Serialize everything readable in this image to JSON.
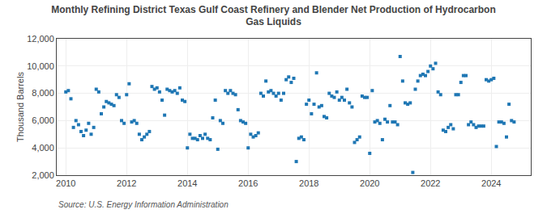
{
  "chart_data": {
    "type": "scatter",
    "title": "Monthly Refining District Texas Gulf Coast Refinery and Blender Net Production of Hydrocarbon\nGas Liquids",
    "ylabel": "Thousand Barrels",
    "annotations": [
      "Source: U.S. Energy Information Administration"
    ],
    "marker": "square",
    "grid": true,
    "xlim": [
      2009.7,
      2025.3
    ],
    "xticks": [
      2010,
      2012,
      2014,
      2016,
      2018,
      2020,
      2022,
      2024
    ],
    "ylim": [
      2000,
      12000
    ],
    "yticks": [
      {
        "value": 2000,
        "label": "2,000"
      },
      {
        "value": 4000,
        "label": "4,000"
      },
      {
        "value": 6000,
        "label": "6,000"
      },
      {
        "value": 8000,
        "label": "8,000"
      },
      {
        "value": 10000,
        "label": "10,000"
      },
      {
        "value": 12000,
        "label": "12,000"
      }
    ],
    "x": [
      2010.0,
      2010.083,
      2010.167,
      2010.25,
      2010.333,
      2010.417,
      2010.5,
      2010.583,
      2010.667,
      2010.75,
      2010.833,
      2010.917,
      2011.0,
      2011.083,
      2011.167,
      2011.25,
      2011.333,
      2011.417,
      2011.5,
      2011.583,
      2011.667,
      2011.75,
      2011.833,
      2011.917,
      2012.0,
      2012.083,
      2012.167,
      2012.25,
      2012.333,
      2012.417,
      2012.5,
      2012.583,
      2012.667,
      2012.75,
      2012.833,
      2012.917,
      2013.0,
      2013.083,
      2013.167,
      2013.25,
      2013.333,
      2013.417,
      2013.5,
      2013.583,
      2013.667,
      2013.75,
      2013.833,
      2013.917,
      2014.0,
      2014.083,
      2014.167,
      2014.25,
      2014.333,
      2014.417,
      2014.5,
      2014.583,
      2014.667,
      2014.75,
      2014.833,
      2014.917,
      2015.0,
      2015.083,
      2015.167,
      2015.25,
      2015.333,
      2015.417,
      2015.5,
      2015.583,
      2015.667,
      2015.75,
      2015.833,
      2015.917,
      2016.0,
      2016.083,
      2016.167,
      2016.25,
      2016.333,
      2016.417,
      2016.5,
      2016.583,
      2016.667,
      2016.75,
      2016.833,
      2016.917,
      2017.0,
      2017.083,
      2017.167,
      2017.25,
      2017.333,
      2017.417,
      2017.5,
      2017.583,
      2017.667,
      2017.75,
      2017.833,
      2017.917,
      2018.0,
      2018.083,
      2018.167,
      2018.25,
      2018.333,
      2018.417,
      2018.5,
      2018.583,
      2018.667,
      2018.75,
      2018.833,
      2018.917,
      2019.0,
      2019.083,
      2019.167,
      2019.25,
      2019.333,
      2019.417,
      2019.5,
      2019.583,
      2019.667,
      2019.75,
      2019.833,
      2019.917,
      2020.0,
      2020.083,
      2020.167,
      2020.25,
      2020.333,
      2020.417,
      2020.5,
      2020.583,
      2020.667,
      2020.75,
      2020.833,
      2020.917,
      2021.0,
      2021.083,
      2021.167,
      2021.25,
      2021.333,
      2021.417,
      2021.5,
      2021.583,
      2021.667,
      2021.75,
      2021.833,
      2021.917,
      2022.0,
      2022.083,
      2022.167,
      2022.25,
      2022.333,
      2022.417,
      2022.5,
      2022.583,
      2022.667,
      2022.75,
      2022.833,
      2022.917,
      2023.0,
      2023.083,
      2023.167,
      2023.25,
      2023.333,
      2023.417,
      2023.5,
      2023.583,
      2023.667,
      2023.75,
      2023.833,
      2023.917,
      2024.0,
      2024.083,
      2024.167,
      2024.25,
      2024.333,
      2024.417,
      2024.5,
      2024.583,
      2024.667,
      2024.75
    ],
    "values": [
      8100,
      8200,
      7600,
      5500,
      6000,
      5700,
      5200,
      4900,
      5300,
      5800,
      5000,
      5500,
      8300,
      8100,
      6500,
      7000,
      7400,
      7300,
      7200,
      7100,
      7900,
      7700,
      6000,
      5800,
      7900,
      8700,
      5900,
      6000,
      5800,
      5000,
      4600,
      4800,
      5000,
      5200,
      8500,
      8300,
      8400,
      8100,
      7500,
      6400,
      8300,
      8200,
      8100,
      8200,
      8000,
      8400,
      7500,
      7400,
      4000,
      5000,
      4700,
      4700,
      4600,
      4900,
      4700,
      5000,
      4700,
      4600,
      6200,
      7500,
      3900,
      6000,
      5800,
      8200,
      8000,
      8200,
      8000,
      7900,
      6800,
      6000,
      5900,
      5800,
      4000,
      5000,
      4800,
      4900,
      5100,
      8000,
      7800,
      8900,
      8100,
      8200,
      8000,
      7800,
      8000,
      7500,
      8000,
      9000,
      9200,
      8800,
      9100,
      3000,
      4700,
      4800,
      4600,
      7200,
      7500,
      6500,
      7200,
      9500,
      7000,
      7100,
      6300,
      6200,
      8000,
      7800,
      7700,
      8100,
      7500,
      7700,
      7500,
      8300,
      7300,
      7000,
      4400,
      4600,
      4800,
      7800,
      7700,
      7700,
      3600,
      8200,
      5900,
      6000,
      5800,
      4600,
      6100,
      5900,
      7100,
      5900,
      5900,
      5700,
      10700,
      8900,
      7300,
      7200,
      7300,
      2200,
      8300,
      8900,
      9300,
      9400,
      9300,
      9600,
      10000,
      9800,
      10200,
      8100,
      7900,
      5300,
      5200,
      5500,
      5700,
      5400,
      7900,
      7900,
      8800,
      9300,
      9300,
      5700,
      5900,
      5700,
      5500,
      5600,
      5600,
      5600,
      9000,
      8900,
      9000,
      9100,
      4100,
      5900,
      5900,
      5800,
      4800,
      7200,
      6000,
      5900
    ]
  }
}
